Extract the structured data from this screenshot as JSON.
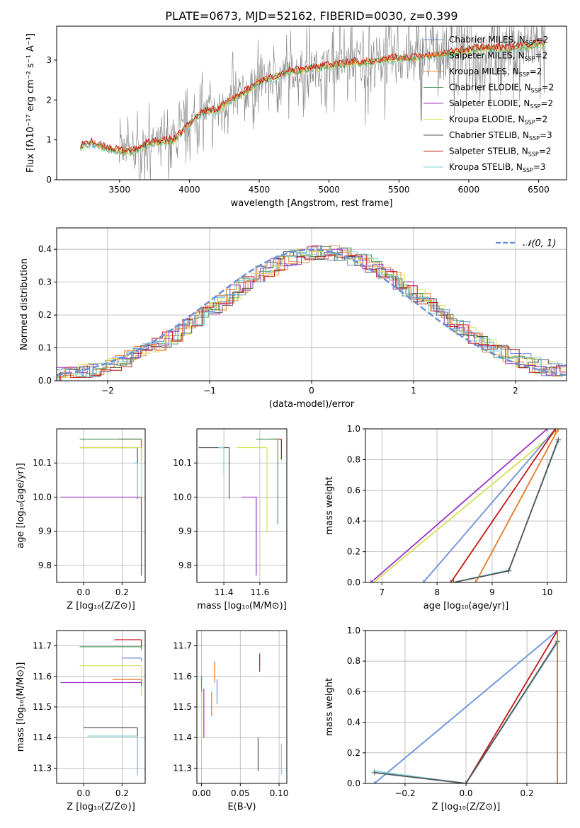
{
  "figure_title": "PLATE=0673, MJD=52162, FIBERID=0030, z=0.399",
  "colors": {
    "observed": "#808080",
    "chabrier_miles": "#6a8fd8",
    "salpeter_miles": "#e87722",
    "kroupa_miles": "#e68a3a",
    "chabrier_elodie": "#4c9a5f",
    "salpeter_elodie": "#9b32c3",
    "kroupa_elodie": "#d4e157",
    "chabrier_stelib": "#555555",
    "salpeter_stelib": "#c41414",
    "kroupa_stelib": "#7ecfd6",
    "normal_curve": "#6a8fd8",
    "grid": "#b0b0b0"
  },
  "chart_data": [
    {
      "id": "spectrum",
      "type": "line",
      "title": "PLATE=0673, MJD=52162, FIBERID=0030, z=0.399",
      "xlabel": "wavelength [Angstrom, rest frame]",
      "ylabel": "Flux [fλ10⁻¹⁷ erg cm⁻² s⁻¹ A⁻¹]",
      "xlim": [
        3050,
        6700
      ],
      "ylim": [
        0,
        3.85
      ],
      "xticks": [
        3500,
        4000,
        4500,
        5000,
        5500,
        6000,
        6500
      ],
      "yticks": [
        0,
        1,
        2,
        3
      ],
      "grid": false,
      "legend_position": "top-right",
      "legend": [
        {
          "label": "Chabrier MILES, N",
          "sub": "SSP",
          "suffix": "=2",
          "color_key": "chabrier_miles"
        },
        {
          "label": "Salpeter MILES, N",
          "sub": "SSP",
          "suffix": "=2",
          "color_key": "salpeter_miles"
        },
        {
          "label": "Kroupa MILES, N",
          "sub": "SSP",
          "suffix": "=2",
          "color_key": "kroupa_miles"
        },
        {
          "label": "Chabrier ELODIE, N",
          "sub": "SSP",
          "suffix": "=2",
          "color_key": "chabrier_elodie"
        },
        {
          "label": "Salpeter ELODIE, N",
          "sub": "SSP",
          "suffix": "=2",
          "color_key": "salpeter_elodie"
        },
        {
          "label": "Kroupa ELODIE, N",
          "sub": "SSP",
          "suffix": "=2",
          "color_key": "kroupa_elodie"
        },
        {
          "label": "Chabrier STELIB, N",
          "sub": "SSP",
          "suffix": "=3",
          "color_key": "chabrier_stelib"
        },
        {
          "label": "Salpeter STELIB, N",
          "sub": "SSP",
          "suffix": "=2",
          "color_key": "salpeter_stelib"
        },
        {
          "label": "Kroupa STELIB, N",
          "sub": "SSP",
          "suffix": "=3",
          "color_key": "kroupa_stelib"
        }
      ],
      "model_continuum": {
        "x": [
          3220,
          3300,
          3400,
          3500,
          3600,
          3700,
          3800,
          3900,
          4000,
          4100,
          4200,
          4300,
          4400,
          4500,
          4600,
          4700,
          4800,
          4900,
          5000,
          5100,
          5200,
          5300,
          5400,
          5500,
          5600,
          5700,
          5800,
          5900,
          6000,
          6100,
          6200,
          6300,
          6400,
          6500,
          6550
        ],
        "y": [
          0.85,
          0.92,
          0.8,
          0.72,
          0.7,
          0.9,
          0.95,
          1.0,
          1.4,
          1.7,
          1.75,
          2.0,
          2.2,
          2.45,
          2.55,
          2.7,
          2.75,
          2.8,
          2.85,
          2.9,
          2.95,
          2.95,
          3.0,
          3.05,
          3.05,
          3.1,
          3.15,
          3.2,
          3.25,
          3.3,
          3.3,
          3.3,
          3.35,
          3.4,
          3.4
        ]
      }
    },
    {
      "id": "residuals",
      "type": "histogram",
      "xlabel": "(data-model)/error",
      "ylabel": "Normed distribution",
      "xlim": [
        -2.5,
        2.5
      ],
      "ylim": [
        0,
        0.465
      ],
      "xticks": [
        -2,
        -1,
        0,
        1,
        2
      ],
      "yticks": [
        0.0,
        0.1,
        0.2,
        0.3,
        0.4
      ],
      "grid": true,
      "legend_position": "top-right",
      "legend": [
        {
          "label": "𝒩(0, 1)",
          "color_key": "normal_curve",
          "style": "dashed"
        }
      ],
      "bin_edges_start": -2.5,
      "bin_width": 0.1,
      "reference_curve": "normal(0,1)"
    },
    {
      "id": "age-vs-Z",
      "type": "scatter",
      "xlabel": "Z [log₁₀(Z/Z⊙)]",
      "ylabel": "age  [log₁₀(age/yr)]",
      "xlim": [
        -0.14,
        0.32
      ],
      "ylim": [
        9.75,
        10.2
      ],
      "xticks": [
        0.0,
        0.2
      ],
      "yticks": [
        9.8,
        9.9,
        10.0,
        10.1
      ],
      "grid": true,
      "points": [
        {
          "x": 0.3,
          "y": 10.17,
          "xerr": 0.12,
          "yerr": 0.06,
          "color_key": "salpeter_stelib"
        },
        {
          "x": 0.3,
          "y": 10.17,
          "xerr": 0.32,
          "yerr": 0.06,
          "color_key": "chabrier_elodie"
        },
        {
          "x": 0.28,
          "y": 10.145,
          "xerr": 0.3,
          "yerr": 0.15,
          "color_key": "chabrier_stelib"
        },
        {
          "x": 0.3,
          "y": 10.145,
          "xerr": 0.32,
          "yerr": 0.25,
          "color_key": "kroupa_elodie"
        },
        {
          "x": 0.3,
          "y": 10.0,
          "xerr": 0.42,
          "yerr": 0.23,
          "color_key": "salpeter_elodie"
        },
        {
          "x": 0.28,
          "y": 10.1,
          "xerr": 0.02,
          "yerr": 0.1,
          "color_key": "kroupa_stelib"
        }
      ]
    },
    {
      "id": "age-vs-mass",
      "type": "scatter",
      "xlabel": "mass [log₁₀(M/M⊙)]",
      "ylabel": "",
      "xlim": [
        11.25,
        11.75
      ],
      "ylim": [
        9.75,
        10.2
      ],
      "xticks": [
        11.4,
        11.6
      ],
      "yticks": [
        9.8,
        9.9,
        10.0,
        10.1
      ],
      "grid": true,
      "points": [
        {
          "x": 11.72,
          "y": 10.17,
          "xerr": 0.06,
          "yerr": 0.06,
          "color_key": "salpeter_stelib"
        },
        {
          "x": 11.7,
          "y": 10.17,
          "xerr": 0.12,
          "yerr": 0.25,
          "color_key": "chabrier_elodie"
        },
        {
          "x": 11.43,
          "y": 10.145,
          "xerr": 0.17,
          "yerr": 0.15,
          "color_key": "chabrier_stelib"
        },
        {
          "x": 11.64,
          "y": 10.145,
          "xerr": 0.17,
          "yerr": 0.25,
          "color_key": "kroupa_elodie"
        },
        {
          "x": 11.58,
          "y": 10.0,
          "xerr": 0.08,
          "yerr": 0.23,
          "color_key": "salpeter_elodie"
        },
        {
          "x": 11.4,
          "y": 10.145,
          "xerr": 0.03,
          "yerr": 0.08,
          "color_key": "kroupa_stelib"
        }
      ]
    },
    {
      "id": "massweight-vs-age",
      "type": "line",
      "xlabel": "age  [log₁₀(age/yr)]",
      "ylabel": "mass weight",
      "xlim": [
        6.7,
        10.35
      ],
      "ylim": [
        0.0,
        1.0
      ],
      "xticks": [
        7,
        8,
        9,
        10
      ],
      "yticks": [
        0.0,
        0.2,
        0.4,
        0.6,
        0.8,
        1.0
      ],
      "grid": true,
      "series": [
        {
          "color_key": "salpeter_elodie",
          "x": [
            6.8,
            10.0
          ],
          "y": [
            0.0,
            1.0
          ]
        },
        {
          "color_key": "kroupa_elodie",
          "x": [
            6.85,
            10.15
          ],
          "y": [
            0.0,
            0.98
          ]
        },
        {
          "color_key": "chabrier_miles",
          "x": [
            7.75,
            10.15
          ],
          "y": [
            0.0,
            1.0
          ]
        },
        {
          "color_key": "salpeter_stelib",
          "x": [
            8.25,
            10.15
          ],
          "y": [
            0.0,
            1.0
          ]
        },
        {
          "color_key": "salpeter_miles",
          "x": [
            8.7,
            10.2
          ],
          "y": [
            0.0,
            1.0
          ]
        },
        {
          "color_key": "kroupa_stelib",
          "x": [
            8.3,
            9.3,
            10.2
          ],
          "y": [
            0.0,
            0.08,
            0.92
          ]
        },
        {
          "color_key": "chabrier_stelib",
          "x": [
            8.3,
            9.3,
            10.2
          ],
          "y": [
            0.0,
            0.075,
            0.93
          ]
        }
      ]
    },
    {
      "id": "mass-vs-Z",
      "type": "scatter",
      "xlabel": "Z [log₁₀(Z/Z⊙)]",
      "ylabel": "mass [log₁₀(M/M⊙)]",
      "xlim": [
        -0.14,
        0.32
      ],
      "ylim": [
        11.25,
        11.75
      ],
      "xticks": [
        0.0,
        0.2
      ],
      "yticks": [
        11.3,
        11.4,
        11.5,
        11.6,
        11.7
      ],
      "grid": true,
      "points": [
        {
          "x": 0.3,
          "y": 11.72,
          "xerr": 0.14,
          "yerr": 0.03,
          "color_key": "salpeter_stelib"
        },
        {
          "x": 0.3,
          "y": 11.697,
          "xerr": 0.32,
          "yerr": 0.01,
          "color_key": "chabrier_elodie"
        },
        {
          "x": 0.3,
          "y": 11.66,
          "xerr": 0.1,
          "yerr": 0.01,
          "color_key": "chabrier_miles"
        },
        {
          "x": 0.3,
          "y": 11.635,
          "xerr": 0.32,
          "yerr": 0.1,
          "color_key": "kroupa_elodie"
        },
        {
          "x": 0.3,
          "y": 11.59,
          "xerr": 0.15,
          "yerr": 0.01,
          "color_key": "salpeter_miles"
        },
        {
          "x": 0.3,
          "y": 11.58,
          "xerr": 0.42,
          "yerr": 0.01,
          "color_key": "salpeter_elodie"
        },
        {
          "x": 0.28,
          "y": 11.432,
          "xerr": 0.28,
          "yerr": 0.15,
          "color_key": "chabrier_stelib"
        },
        {
          "x": 0.28,
          "y": 11.405,
          "xerr": 0.26,
          "yerr": 0.13,
          "color_key": "kroupa_stelib"
        }
      ]
    },
    {
      "id": "mass-vs-ebv",
      "type": "scatter",
      "xlabel": "E(B-V)",
      "ylabel": "",
      "xlim": [
        -0.006,
        0.11
      ],
      "ylim": [
        11.25,
        11.75
      ],
      "xticks": [
        0.0,
        0.05,
        0.1
      ],
      "yticks": [
        11.3,
        11.4,
        11.5,
        11.6,
        11.7
      ],
      "grid": true,
      "points": [
        {
          "x": 0.0,
          "y": 11.6,
          "xerr": 0.0,
          "yerr": 0.15,
          "color_key": "chabrier_elodie"
        },
        {
          "x": 0.0,
          "y": 11.55,
          "xerr": 0.0,
          "yerr": 0.15,
          "color_key": "kroupa_elodie"
        },
        {
          "x": 0.003,
          "y": 11.56,
          "xerr": 0.0,
          "yerr": 0.16,
          "color_key": "salpeter_elodie"
        },
        {
          "x": 0.013,
          "y": 11.55,
          "xerr": 0.0,
          "yerr": 0.08,
          "color_key": "salpeter_miles"
        },
        {
          "x": 0.017,
          "y": 11.65,
          "xerr": 0.0,
          "yerr": 0.07,
          "color_key": "salpeter_miles"
        },
        {
          "x": 0.02,
          "y": 11.59,
          "xerr": 0.0,
          "yerr": 0.08,
          "color_key": "chabrier_miles"
        },
        {
          "x": 0.075,
          "y": 11.675,
          "xerr": 0.0,
          "yerr": 0.06,
          "color_key": "salpeter_stelib"
        },
        {
          "x": 0.073,
          "y": 11.4,
          "xerr": 0.0,
          "yerr": 0.11,
          "color_key": "chabrier_stelib"
        },
        {
          "x": 0.103,
          "y": 11.38,
          "xerr": 0.0,
          "yerr": 0.1,
          "color_key": "kroupa_stelib"
        }
      ]
    },
    {
      "id": "massweight-vs-Z",
      "type": "line",
      "xlabel": "Z [log₁₀(Z/Z⊙)]",
      "ylabel": "mass weight",
      "xlim": [
        -0.33,
        0.33
      ],
      "ylim": [
        0.0,
        1.0
      ],
      "xticks": [
        -0.2,
        0.0,
        0.2
      ],
      "yticks": [
        0.0,
        0.2,
        0.4,
        0.6,
        0.8,
        1.0
      ],
      "grid": true,
      "series": [
        {
          "color_key": "chabrier_miles",
          "x": [
            -0.3,
            0.3
          ],
          "y": [
            0.0,
            1.0
          ]
        },
        {
          "color_key": "salpeter_stelib",
          "x": [
            0.0,
            0.3
          ],
          "y": [
            0.0,
            1.0
          ]
        },
        {
          "color_key": "kroupa_stelib",
          "x": [
            -0.3,
            0.0,
            0.3
          ],
          "y": [
            0.08,
            0.0,
            0.92
          ]
        },
        {
          "color_key": "chabrier_stelib",
          "x": [
            -0.3,
            0.0,
            0.3
          ],
          "y": [
            0.07,
            0.0,
            0.93
          ]
        },
        {
          "color_key": "chabrier_elodie",
          "x": [
            0.3,
            0.3
          ],
          "y": [
            0.0,
            1.0
          ]
        },
        {
          "color_key": "salpeter_miles",
          "x": [
            0.3,
            0.3
          ],
          "y": [
            0.0,
            1.0
          ]
        }
      ]
    }
  ]
}
